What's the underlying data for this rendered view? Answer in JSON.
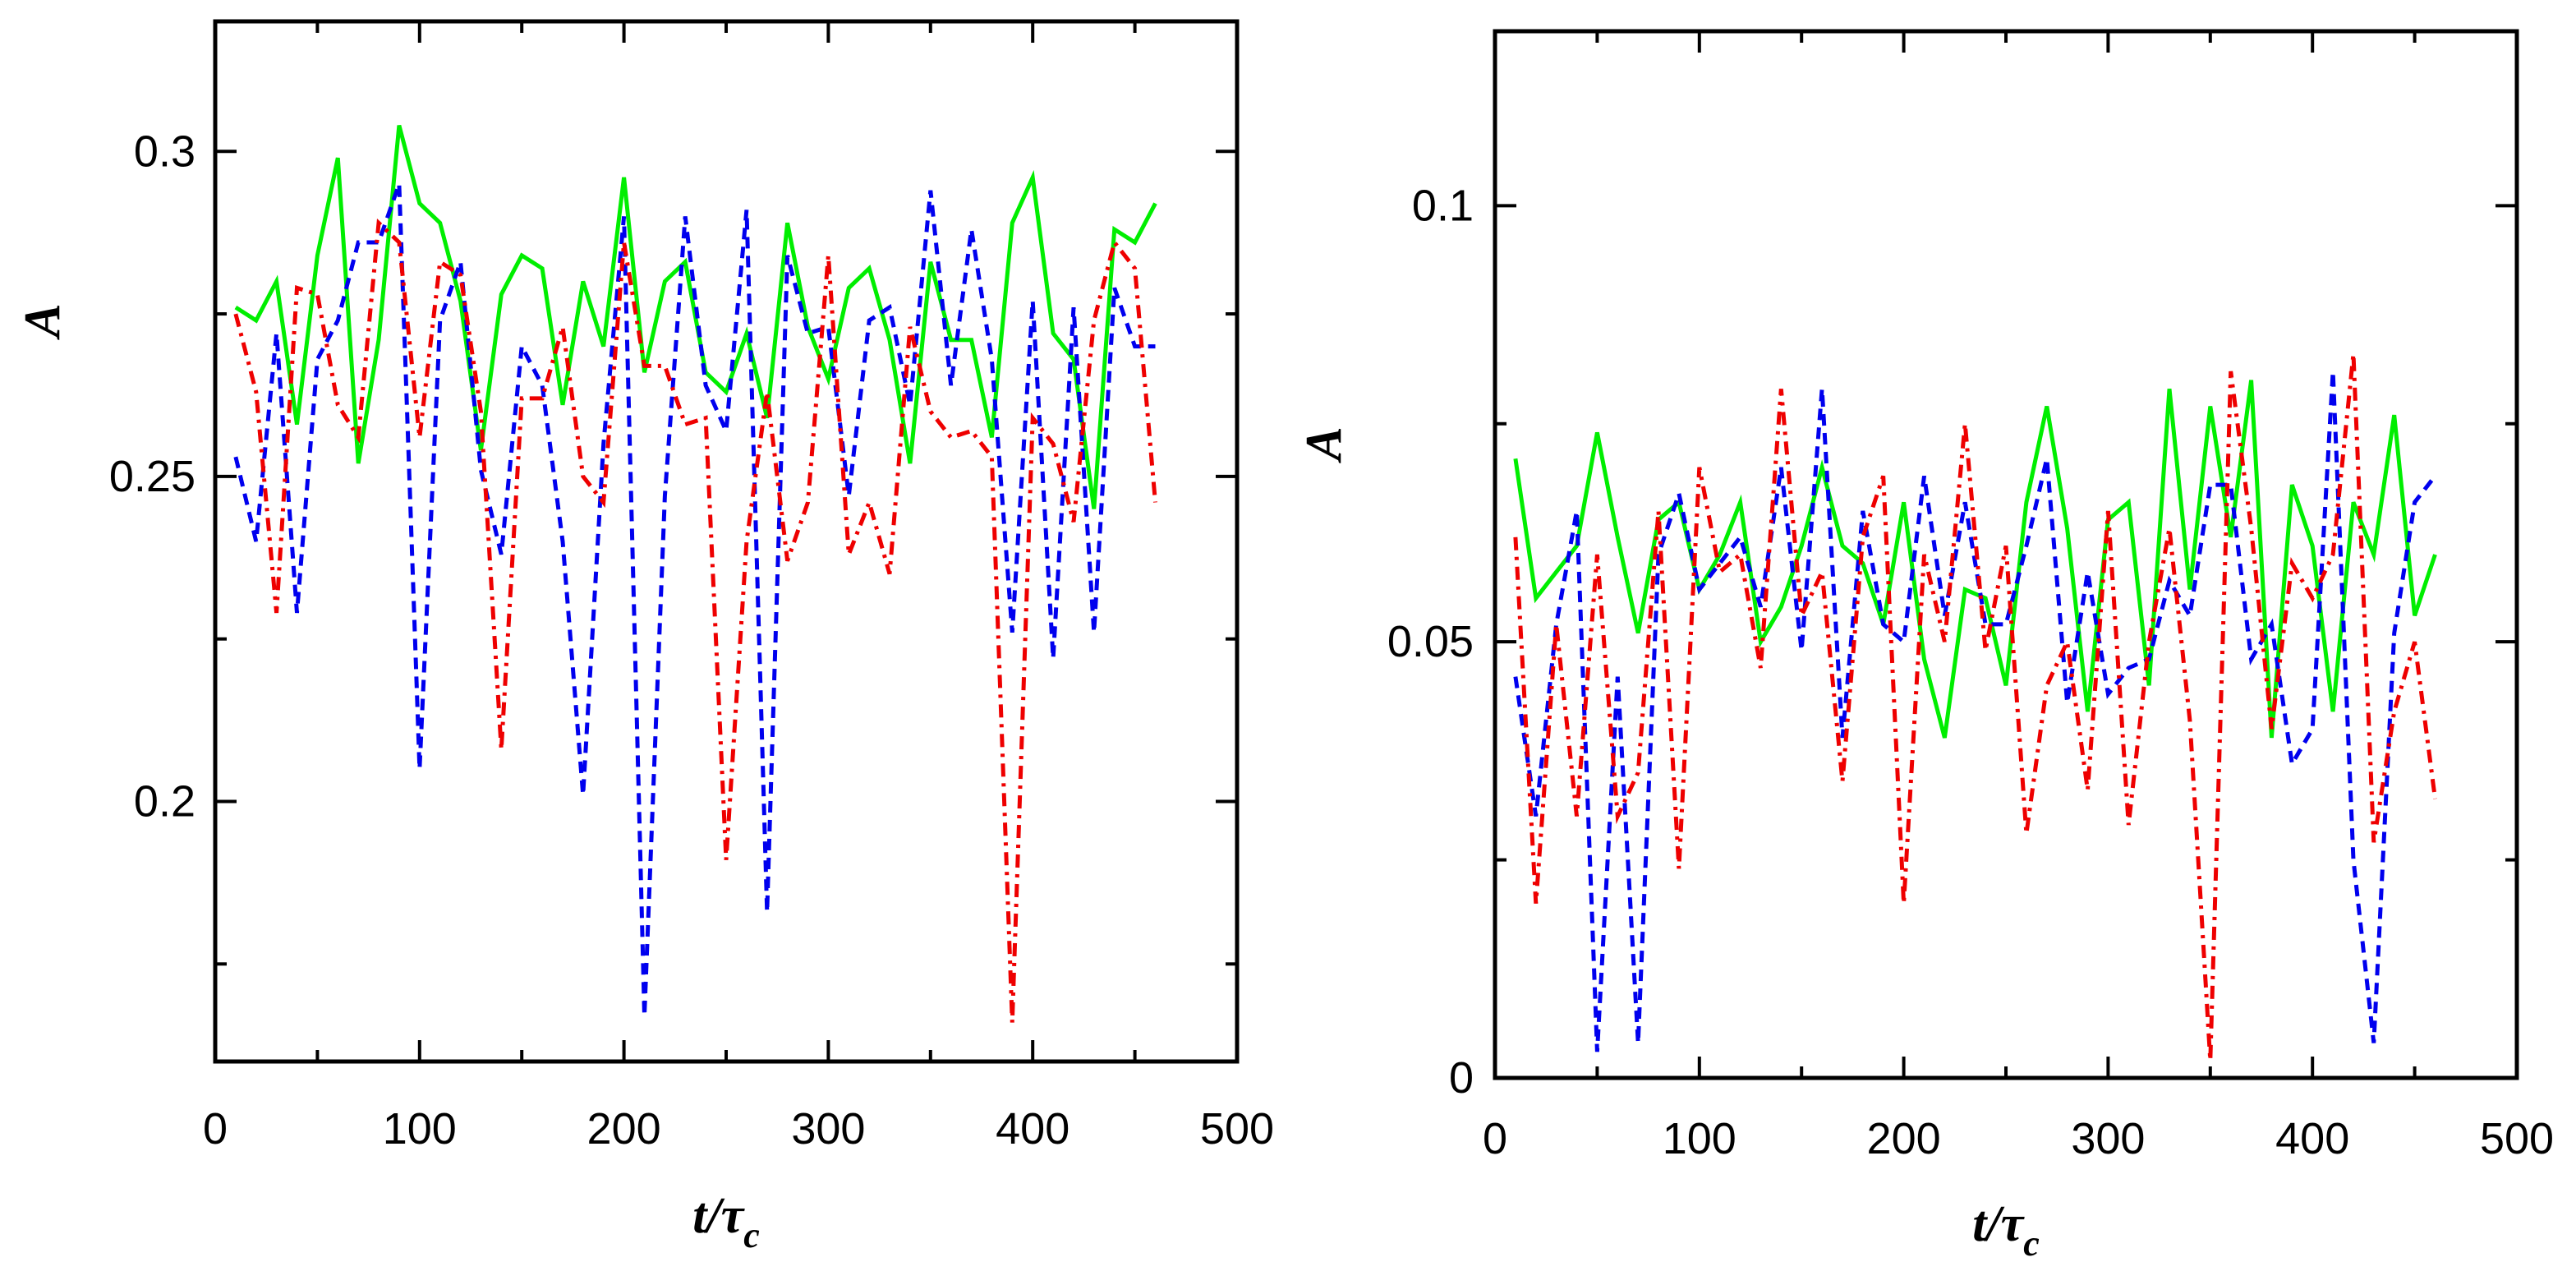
{
  "chart_data": [
    {
      "type": "line",
      "title": "",
      "xlabel": "t/τ_c",
      "ylabel": "A",
      "xlim": [
        0,
        500
      ],
      "ylim": [
        0.16,
        0.32
      ],
      "xticks": [
        0,
        100,
        200,
        300,
        400,
        500
      ],
      "xtick_labels": [
        "0",
        "100",
        "200",
        "300",
        "400",
        "500"
      ],
      "yticks": [
        0.2,
        0.25,
        0.3
      ],
      "ytick_labels": [
        "0.2",
        "0.25",
        "0.3"
      ],
      "grid": false,
      "x": [
        10,
        20,
        30,
        40,
        50,
        60,
        70,
        80,
        90,
        100,
        110,
        120,
        130,
        140,
        150,
        160,
        170,
        180,
        190,
        200,
        210,
        220,
        230,
        240,
        250,
        260,
        270,
        280,
        290,
        300,
        310,
        320,
        330,
        340,
        350,
        360,
        370,
        380,
        390,
        400,
        410,
        420,
        430,
        440,
        450,
        460
      ],
      "series": [
        {
          "name": "solid",
          "color": "#00ee00",
          "dash": "solid",
          "values": [
            0.276,
            0.274,
            0.28,
            0.258,
            0.284,
            0.299,
            0.252,
            0.271,
            0.304,
            0.292,
            0.289,
            0.277,
            0.254,
            0.278,
            0.284,
            0.282,
            0.261,
            0.28,
            0.27,
            0.296,
            0.266,
            0.28,
            0.283,
            0.266,
            0.263,
            0.272,
            0.259,
            0.289,
            0.273,
            0.265,
            0.279,
            0.282,
            0.271,
            0.252,
            0.283,
            0.271,
            0.271,
            0.256,
            0.289,
            0.296,
            0.272,
            0.268,
            0.245,
            0.288,
            0.286,
            0.292
          ]
        },
        {
          "name": "dashed",
          "color": "#0000ee",
          "dash": "dashed",
          "values": [
            0.253,
            0.24,
            0.272,
            0.229,
            0.268,
            0.274,
            0.286,
            0.286,
            0.295,
            0.205,
            0.274,
            0.283,
            0.251,
            0.238,
            0.27,
            0.264,
            0.24,
            0.201,
            0.255,
            0.29,
            0.167,
            0.247,
            0.29,
            0.264,
            0.257,
            0.291,
            0.183,
            0.284,
            0.272,
            0.273,
            0.247,
            0.274,
            0.276,
            0.261,
            0.294,
            0.264,
            0.288,
            0.268,
            0.226,
            0.277,
            0.222,
            0.276,
            0.226,
            0.279,
            0.27,
            0.27
          ]
        },
        {
          "name": "dash-dot",
          "color": "#ee0000",
          "dash": "dashdot",
          "values": [
            0.275,
            0.263,
            0.229,
            0.279,
            0.278,
            0.261,
            0.256,
            0.289,
            0.286,
            0.256,
            0.283,
            0.281,
            0.26,
            0.208,
            0.262,
            0.262,
            0.273,
            0.25,
            0.246,
            0.286,
            0.267,
            0.267,
            0.258,
            0.259,
            0.191,
            0.24,
            0.263,
            0.237,
            0.246,
            0.284,
            0.238,
            0.246,
            0.235,
            0.273,
            0.26,
            0.256,
            0.257,
            0.253,
            0.166,
            0.259,
            0.255,
            0.243,
            0.274,
            0.286,
            0.282,
            0.246
          ]
        }
      ]
    },
    {
      "type": "line",
      "title": "",
      "xlabel": "t/τ_c",
      "ylabel": "A",
      "xlim": [
        0,
        500
      ],
      "ylim": [
        0,
        0.12
      ],
      "xticks": [
        0,
        100,
        200,
        300,
        400,
        500
      ],
      "xtick_labels": [
        "0",
        "100",
        "200",
        "300",
        "400",
        "500"
      ],
      "yticks": [
        0,
        0.05,
        0.1
      ],
      "ytick_labels": [
        "0",
        "0.05",
        "0.1"
      ],
      "grid": false,
      "x": [
        10,
        20,
        30,
        40,
        50,
        60,
        70,
        80,
        90,
        100,
        110,
        120,
        130,
        140,
        150,
        160,
        170,
        180,
        190,
        200,
        210,
        220,
        230,
        240,
        250,
        260,
        270,
        280,
        290,
        300,
        310,
        320,
        330,
        340,
        350,
        360,
        370,
        380,
        390,
        400,
        410,
        420,
        430,
        440,
        450,
        460
      ],
      "series": [
        {
          "name": "solid",
          "color": "#00ee00",
          "dash": "solid",
          "values": [
            0.071,
            0.055,
            0.058,
            0.061,
            0.074,
            0.062,
            0.051,
            0.064,
            0.066,
            0.056,
            0.06,
            0.066,
            0.05,
            0.054,
            0.061,
            0.07,
            0.061,
            0.059,
            0.052,
            0.066,
            0.048,
            0.039,
            0.056,
            0.055,
            0.045,
            0.066,
            0.077,
            0.063,
            0.042,
            0.064,
            0.066,
            0.045,
            0.079,
            0.056,
            0.077,
            0.062,
            0.08,
            0.039,
            0.068,
            0.061,
            0.042,
            0.066,
            0.06,
            0.076,
            0.053,
            0.06
          ]
        },
        {
          "name": "dashed",
          "color": "#0000ee",
          "dash": "dashed",
          "values": [
            0.046,
            0.03,
            0.052,
            0.065,
            0.003,
            0.046,
            0.004,
            0.06,
            0.067,
            0.056,
            0.059,
            0.062,
            0.054,
            0.07,
            0.049,
            0.079,
            0.039,
            0.065,
            0.052,
            0.05,
            0.069,
            0.053,
            0.066,
            0.052,
            0.052,
            0.061,
            0.071,
            0.043,
            0.058,
            0.044,
            0.047,
            0.048,
            0.057,
            0.053,
            0.068,
            0.068,
            0.048,
            0.052,
            0.036,
            0.04,
            0.081,
            0.025,
            0.004,
            0.051,
            0.066,
            0.069
          ]
        },
        {
          "name": "dash-dot",
          "color": "#ee0000",
          "dash": "dashdot",
          "values": [
            0.062,
            0.02,
            0.052,
            0.03,
            0.06,
            0.03,
            0.035,
            0.065,
            0.024,
            0.07,
            0.058,
            0.06,
            0.047,
            0.079,
            0.053,
            0.058,
            0.034,
            0.062,
            0.069,
            0.02,
            0.06,
            0.05,
            0.075,
            0.049,
            0.061,
            0.028,
            0.045,
            0.05,
            0.033,
            0.065,
            0.029,
            0.05,
            0.063,
            0.041,
            0.002,
            0.081,
            0.063,
            0.04,
            0.059,
            0.055,
            0.06,
            0.083,
            0.027,
            0.042,
            0.05,
            0.032
          ]
        }
      ]
    }
  ]
}
